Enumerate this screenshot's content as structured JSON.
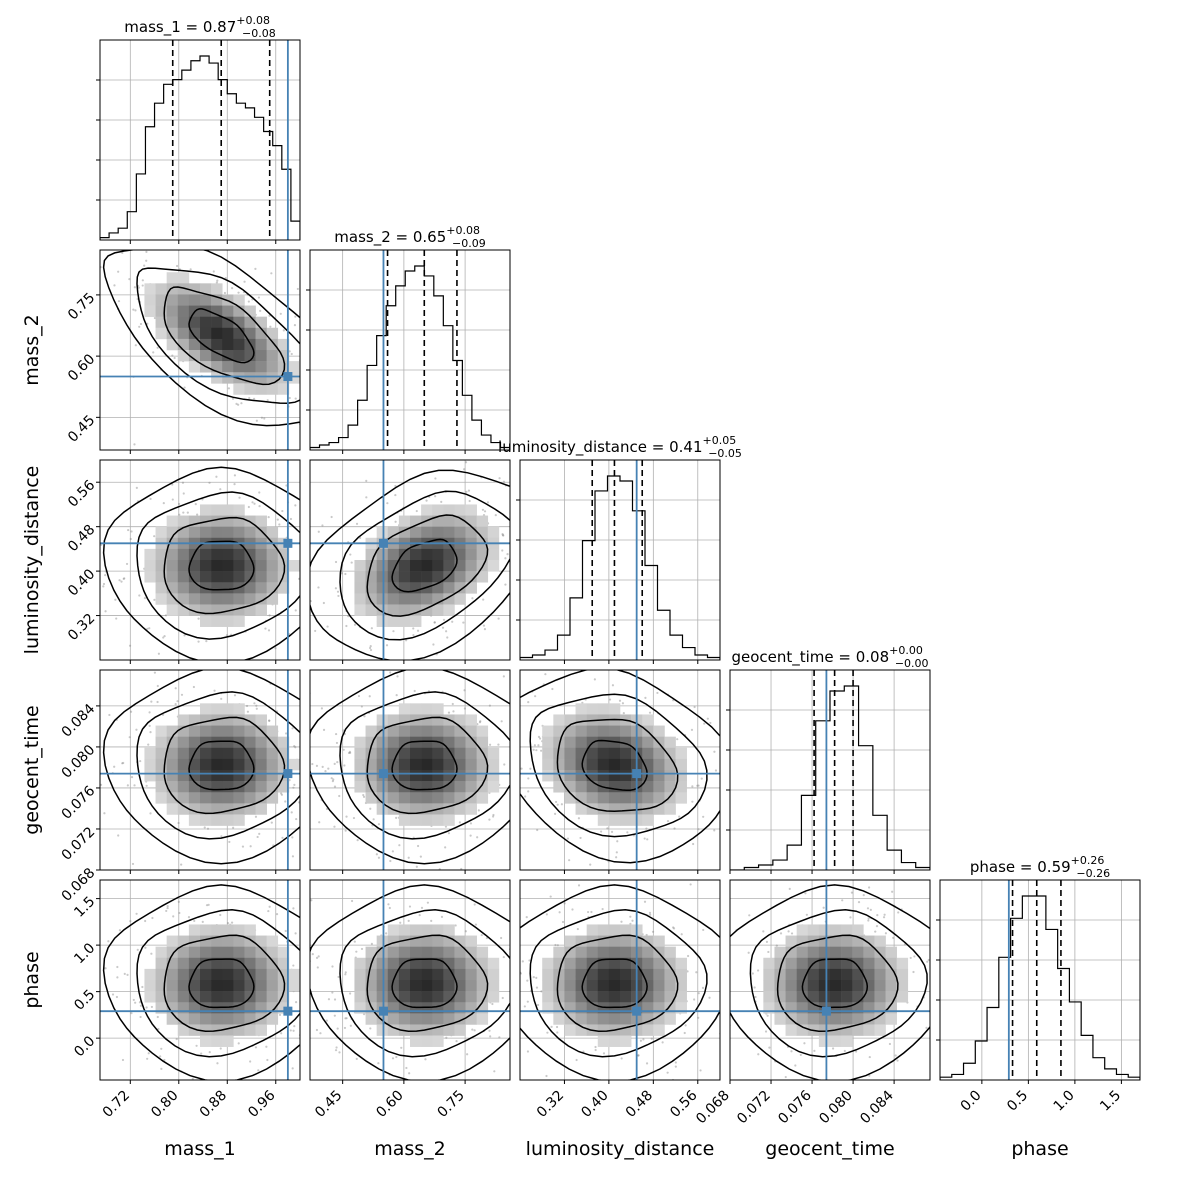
{
  "chart_data": {
    "type": "corner",
    "params": [
      {
        "name": "mass_1",
        "label": "mass_1",
        "range": [
          0.67,
          1.0
        ],
        "ticks": [
          "0.72",
          "0.80",
          "0.88",
          "0.96"
        ],
        "truth": 0.98,
        "median": 0.87,
        "q16": 0.79,
        "q84": 0.95,
        "title_value": "0.87",
        "title_plus": "+0.08",
        "title_minus": "−0.08",
        "hist": [
          1,
          3,
          5,
          12,
          28,
          48,
          58,
          66,
          68,
          72,
          76,
          78,
          75,
          68,
          62,
          58,
          56,
          52,
          46,
          40,
          30,
          8
        ]
      },
      {
        "name": "mass_2",
        "label": "mass_2",
        "range": [
          0.37,
          0.86
        ],
        "ticks": [
          "0.45",
          "0.60",
          "0.75"
        ],
        "truth": 0.55,
        "median": 0.65,
        "q16": 0.56,
        "q84": 0.73,
        "title_value": "0.65",
        "title_plus": "+0.08",
        "title_minus": "−0.09",
        "hist": [
          1,
          2,
          3,
          5,
          10,
          20,
          34,
          46,
          58,
          66,
          72,
          74,
          70,
          62,
          50,
          36,
          22,
          12,
          6,
          3,
          1
        ]
      },
      {
        "name": "luminosity_distance",
        "label": "luminosity_distance",
        "range": [
          0.24,
          0.6
        ],
        "ticks": [
          "0.32",
          "0.40",
          "0.48",
          "0.56"
        ],
        "truth": 0.45,
        "median": 0.41,
        "q16": 0.37,
        "q84": 0.46,
        "title_value": "0.41",
        "title_plus": "+0.05",
        "title_minus": "−0.05",
        "hist": [
          1,
          2,
          4,
          10,
          25,
          48,
          68,
          74,
          72,
          60,
          38,
          20,
          10,
          5,
          2,
          1
        ]
      },
      {
        "name": "geocent_time",
        "label": "geocent_time",
        "range": [
          0.068,
          0.0875
        ],
        "ticks": [
          "0.068",
          "0.072",
          "0.076",
          "0.080",
          "0.084"
        ],
        "truth": 0.0774,
        "median": 0.0782,
        "q16": 0.0762,
        "q84": 0.08,
        "title_value": "0.08",
        "title_plus": "+0.00",
        "title_minus": "−0.00",
        "hist": [
          0,
          1,
          2,
          4,
          10,
          30,
          60,
          72,
          74,
          50,
          22,
          8,
          3,
          1
        ]
      },
      {
        "name": "phase",
        "label": "phase",
        "range": [
          -0.45,
          1.7
        ],
        "ticks": [
          "0.0",
          "0.5",
          "1.0",
          "1.5"
        ],
        "truth": 0.29,
        "median": 0.59,
        "q16": 0.33,
        "q84": 0.85,
        "title_value": "0.59",
        "title_plus": "+0.26",
        "title_minus": "−0.26",
        "hist": [
          1,
          2,
          6,
          14,
          26,
          44,
          58,
          66,
          66,
          54,
          40,
          28,
          16,
          8,
          4,
          2,
          1
        ]
      }
    ],
    "scatter_ticks": {
      "mass_2": [
        "0.45",
        "0.60",
        "0.75"
      ],
      "luminosity_distance": [
        "0.32",
        "0.40",
        "0.48",
        "0.56"
      ],
      "geocent_time": [
        "0.068",
        "0.072",
        "0.076",
        "0.080",
        "0.084"
      ],
      "phase": [
        "0.0",
        "0.5",
        "1.0",
        "1.5"
      ]
    },
    "truth_color": "#4682b4",
    "grid": true
  }
}
